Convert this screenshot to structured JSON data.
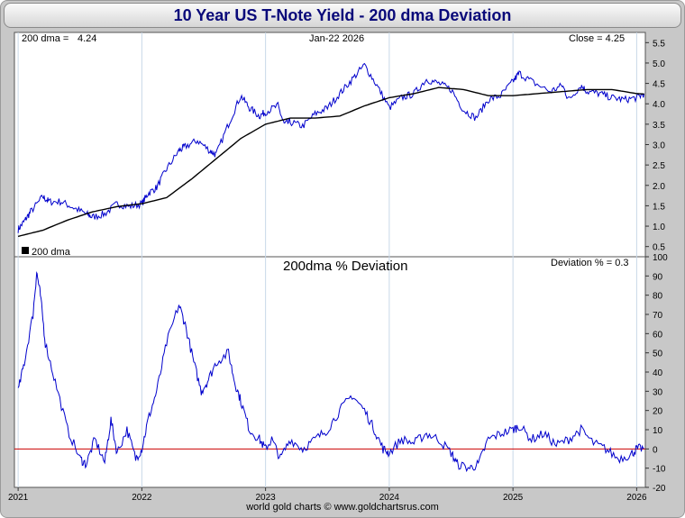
{
  "title": "10 Year US T-Note Yield - 200 dma Deviation",
  "footer": "world gold charts © www.goldchartsrus.com",
  "colors": {
    "price": "#0000cc",
    "dma": "#000000",
    "deviation": "#0000cc",
    "zero_line": "#cc0000",
    "grid": "#c8d8e8"
  },
  "chart_data": [
    {
      "type": "line",
      "panel": "top",
      "header": {
        "dma_label": "200 dma =",
        "dma_value": "4.24",
        "date": "Jan-22  2026",
        "close_label": "Close = 4.25"
      },
      "legend": "200 dma",
      "ylim": [
        0.25,
        5.75
      ],
      "yticks": [
        0.5,
        1.0,
        1.5,
        2.0,
        2.5,
        3.0,
        3.5,
        4.0,
        4.5,
        5.0,
        5.5
      ],
      "ytick_labels": [
        "0.5",
        "1.0",
        "1.5",
        "2.0",
        "2.5",
        "3.0",
        "3.5",
        "4.0",
        "4.5",
        "5.0",
        "5.5"
      ],
      "series": [
        {
          "name": "10 Year Yield",
          "x": [
            2021.0,
            2021.05,
            2021.1,
            2021.2,
            2021.25,
            2021.35,
            2021.45,
            2021.55,
            2021.6,
            2021.7,
            2021.8,
            2021.9,
            2022.0,
            2022.05,
            2022.12,
            2022.2,
            2022.3,
            2022.35,
            2022.45,
            2022.55,
            2022.6,
            2022.7,
            2022.8,
            2022.87,
            2022.95,
            2023.0,
            2023.1,
            2023.15,
            2023.2,
            2023.3,
            2023.4,
            2023.5,
            2023.6,
            2023.7,
            2023.8,
            2023.9,
            2024.0,
            2024.1,
            2024.2,
            2024.3,
            2024.4,
            2024.5,
            2024.6,
            2024.7,
            2024.8,
            2024.9,
            2025.0,
            2025.05,
            2025.15,
            2025.3,
            2025.4,
            2025.45,
            2025.55,
            2025.6,
            2025.7,
            2025.8,
            2025.9,
            2026.0,
            2026.06
          ],
          "values": [
            0.92,
            1.12,
            1.35,
            1.72,
            1.6,
            1.6,
            1.45,
            1.3,
            1.22,
            1.3,
            1.55,
            1.48,
            1.55,
            1.8,
            1.95,
            2.4,
            2.85,
            2.95,
            3.1,
            2.85,
            2.75,
            3.5,
            4.2,
            3.9,
            3.7,
            3.8,
            3.95,
            3.5,
            3.55,
            3.45,
            3.75,
            3.9,
            4.25,
            4.6,
            4.95,
            4.45,
            3.9,
            4.15,
            4.25,
            4.6,
            4.5,
            4.35,
            3.85,
            3.65,
            4.1,
            4.2,
            4.55,
            4.75,
            4.55,
            4.3,
            4.45,
            4.1,
            4.45,
            4.3,
            4.25,
            4.15,
            4.1,
            4.15,
            4.25
          ]
        },
        {
          "name": "200 dma",
          "x": [
            2021.0,
            2021.2,
            2021.4,
            2021.6,
            2021.8,
            2022.0,
            2022.2,
            2022.4,
            2022.6,
            2022.8,
            2023.0,
            2023.2,
            2023.4,
            2023.6,
            2023.8,
            2024.0,
            2024.2,
            2024.4,
            2024.6,
            2024.8,
            2025.0,
            2025.2,
            2025.4,
            2025.6,
            2025.8,
            2026.0,
            2026.06
          ],
          "values": [
            0.75,
            0.9,
            1.15,
            1.35,
            1.48,
            1.55,
            1.7,
            2.15,
            2.65,
            3.15,
            3.5,
            3.65,
            3.65,
            3.7,
            3.95,
            4.15,
            4.25,
            4.4,
            4.35,
            4.2,
            4.2,
            4.25,
            4.3,
            4.35,
            4.35,
            4.25,
            4.24
          ]
        }
      ]
    },
    {
      "type": "line",
      "panel": "bottom",
      "title": "200dma  %  Deviation",
      "annotation": "Deviation % = 0.3",
      "ylim": [
        -20,
        100
      ],
      "yticks": [
        -20,
        -10,
        0,
        10,
        20,
        30,
        40,
        50,
        60,
        70,
        80,
        90,
        100
      ],
      "ytick_labels": [
        "-20",
        "-10",
        "0",
        "10",
        "20",
        "30",
        "40",
        "50",
        "60",
        "70",
        "80",
        "90",
        "100"
      ],
      "xticks": [
        2021,
        2022,
        2023,
        2024,
        2025,
        2026
      ],
      "xtick_labels": [
        "2021",
        "2022",
        "2023",
        "2024",
        "2025",
        "2026"
      ],
      "xlim": [
        2020.97,
        2026.07
      ],
      "series": [
        {
          "name": "Deviation %",
          "x": [
            2021.0,
            2021.05,
            2021.12,
            2021.15,
            2021.18,
            2021.22,
            2021.3,
            2021.4,
            2021.5,
            2021.55,
            2021.62,
            2021.7,
            2021.75,
            2021.8,
            2021.88,
            2021.95,
            2022.0,
            2022.05,
            2022.12,
            2022.2,
            2022.3,
            2022.35,
            2022.42,
            2022.48,
            2022.53,
            2022.6,
            2022.7,
            2022.75,
            2022.8,
            2022.87,
            2022.95,
            2023.0,
            2023.05,
            2023.12,
            2023.2,
            2023.3,
            2023.4,
            2023.5,
            2023.6,
            2023.7,
            2023.8,
            2023.88,
            2023.95,
            2024.0,
            2024.1,
            2024.2,
            2024.3,
            2024.4,
            2024.5,
            2024.55,
            2024.65,
            2024.72,
            2024.8,
            2024.9,
            2025.0,
            2025.05,
            2025.15,
            2025.25,
            2025.35,
            2025.45,
            2025.55,
            2025.65,
            2025.75,
            2025.85,
            2025.95,
            2026.0,
            2026.06
          ],
          "values": [
            30,
            45,
            70,
            92,
            80,
            55,
            35,
            10,
            -5,
            -8,
            5,
            -7,
            15,
            -2,
            10,
            -5,
            0,
            15,
            30,
            55,
            75,
            65,
            45,
            30,
            35,
            45,
            50,
            35,
            25,
            10,
            5,
            0,
            5,
            -5,
            5,
            0,
            5,
            10,
            20,
            28,
            20,
            10,
            0,
            -2,
            5,
            3,
            8,
            5,
            -2,
            -8,
            -10,
            -8,
            5,
            8,
            10,
            12,
            5,
            8,
            2,
            5,
            10,
            3,
            0,
            -5,
            -3,
            0,
            0.3
          ]
        }
      ]
    }
  ]
}
